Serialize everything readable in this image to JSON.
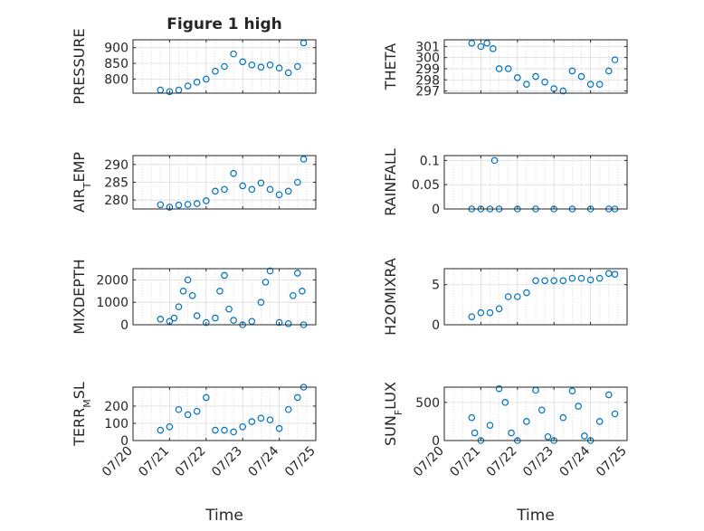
{
  "chart_data": [
    {
      "type": "scatter",
      "title": "Figure 1 high",
      "ylabel": "PRESSURE",
      "ylim": [
        755,
        925
      ],
      "yticks": [
        800,
        850,
        900
      ],
      "xlim": [
        "07/20",
        "07/25"
      ],
      "x": [
        "07/20 18:00",
        "07/21 00:00",
        "07/21 06:00",
        "07/21 12:00",
        "07/21 18:00",
        "07/22 00:00",
        "07/22 06:00",
        "07/22 12:00",
        "07/22 18:00",
        "07/23 00:00",
        "07/23 06:00",
        "07/23 12:00",
        "07/23 18:00",
        "07/24 00:00",
        "07/24 06:00",
        "07/24 12:00",
        "07/24 16:00"
      ],
      "y": [
        765,
        760,
        765,
        778,
        790,
        800,
        825,
        840,
        880,
        855,
        845,
        838,
        845,
        835,
        820,
        840,
        915
      ],
      "color": "#0072bd"
    },
    {
      "type": "scatter",
      "ylabel": "THETA",
      "ylim": [
        296.8,
        301.6
      ],
      "yticks": [
        297,
        298,
        299,
        300,
        301
      ],
      "xlim": [
        "07/20",
        "07/25"
      ],
      "x": [
        "07/20 18:00",
        "07/21 00:00",
        "07/21 04:00",
        "07/21 08:00",
        "07/21 12:00",
        "07/21 18:00",
        "07/22 00:00",
        "07/22 06:00",
        "07/22 12:00",
        "07/22 18:00",
        "07/23 00:00",
        "07/23 06:00",
        "07/23 12:00",
        "07/23 18:00",
        "07/24 00:00",
        "07/24 06:00",
        "07/24 12:00",
        "07/24 16:00"
      ],
      "y": [
        301.3,
        301.0,
        301.3,
        300.8,
        299.0,
        299.0,
        298.2,
        297.6,
        298.3,
        297.8,
        297.2,
        297.0,
        298.8,
        298.3,
        297.6,
        297.6,
        298.8,
        299.8
      ],
      "color": "#0072bd"
    },
    {
      "type": "scatter",
      "ylabel": "AIR_TEMP",
      "ylim": [
        277.5,
        292.5
      ],
      "yticks": [
        280,
        285,
        290
      ],
      "xlim": [
        "07/20",
        "07/25"
      ],
      "x": [
        "07/20 18:00",
        "07/21 00:00",
        "07/21 06:00",
        "07/21 12:00",
        "07/21 18:00",
        "07/22 00:00",
        "07/22 06:00",
        "07/22 12:00",
        "07/22 18:00",
        "07/23 00:00",
        "07/23 06:00",
        "07/23 12:00",
        "07/23 18:00",
        "07/24 00:00",
        "07/24 06:00",
        "07/24 12:00",
        "07/24 16:00"
      ],
      "y": [
        278.7,
        278.0,
        278.6,
        278.8,
        279.0,
        279.8,
        282.5,
        283.0,
        287.5,
        284.0,
        283.0,
        284.8,
        283.0,
        281.5,
        282.5,
        285.0,
        291.5
      ],
      "color": "#0072bd"
    },
    {
      "type": "scatter",
      "ylabel": "RAINFALL",
      "ylim": [
        0,
        0.11
      ],
      "yticks": [
        0,
        0.05,
        0.1
      ],
      "xlim": [
        "07/20",
        "07/25"
      ],
      "x": [
        "07/20 18:00",
        "07/21 00:00",
        "07/21 06:00",
        "07/21 09:00",
        "07/21 12:00",
        "07/22 00:00",
        "07/22 12:00",
        "07/23 00:00",
        "07/23 12:00",
        "07/24 00:00",
        "07/24 12:00",
        "07/24 16:00"
      ],
      "y": [
        0,
        0,
        0,
        0.1,
        0,
        0,
        0,
        0,
        0,
        0,
        0,
        0
      ],
      "color": "#0072bd"
    },
    {
      "type": "scatter",
      "ylabel": "MIXDEPTH",
      "ylim": [
        0,
        2500
      ],
      "yticks": [
        0,
        1000,
        2000
      ],
      "xlim": [
        "07/20",
        "07/25"
      ],
      "x": [
        "07/20 18:00",
        "07/21 00:00",
        "07/21 03:00",
        "07/21 06:00",
        "07/21 09:00",
        "07/21 12:00",
        "07/21 15:00",
        "07/21 18:00",
        "07/22 00:00",
        "07/22 06:00",
        "07/22 09:00",
        "07/22 12:00",
        "07/22 15:00",
        "07/22 18:00",
        "07/23 00:00",
        "07/23 06:00",
        "07/23 12:00",
        "07/23 15:00",
        "07/23 18:00",
        "07/24 00:00",
        "07/24 06:00",
        "07/24 09:00",
        "07/24 12:00",
        "07/24 15:00",
        "07/24 16:00"
      ],
      "y": [
        250,
        150,
        300,
        800,
        1500,
        2000,
        1300,
        400,
        100,
        300,
        1500,
        2200,
        700,
        200,
        0,
        150,
        1000,
        1900,
        2400,
        100,
        50,
        1300,
        2300,
        1500,
        0
      ],
      "color": "#0072bd"
    },
    {
      "type": "scatter",
      "ylabel": "H2OMIXRA",
      "ylim": [
        0,
        7
      ],
      "yticks": [
        0,
        5
      ],
      "xlim": [
        "07/20",
        "07/25"
      ],
      "x": [
        "07/20 18:00",
        "07/21 00:00",
        "07/21 06:00",
        "07/21 12:00",
        "07/21 18:00",
        "07/22 00:00",
        "07/22 06:00",
        "07/22 12:00",
        "07/22 18:00",
        "07/23 00:00",
        "07/23 06:00",
        "07/23 12:00",
        "07/23 18:00",
        "07/24 00:00",
        "07/24 06:00",
        "07/24 12:00",
        "07/24 16:00"
      ],
      "y": [
        1.0,
        1.5,
        1.5,
        2.0,
        3.5,
        3.5,
        4.0,
        5.5,
        5.5,
        5.5,
        5.5,
        5.8,
        5.8,
        5.6,
        5.8,
        6.4,
        6.3
      ],
      "color": "#0072bd"
    },
    {
      "type": "scatter",
      "ylabel": "TERR_MSL",
      "ylim": [
        0,
        310
      ],
      "yticks": [
        0,
        100,
        200
      ],
      "xlim": [
        "07/20",
        "07/25"
      ],
      "x": [
        "07/20 18:00",
        "07/21 00:00",
        "07/21 06:00",
        "07/21 12:00",
        "07/21 18:00",
        "07/22 00:00",
        "07/22 06:00",
        "07/22 12:00",
        "07/22 18:00",
        "07/23 00:00",
        "07/23 06:00",
        "07/23 12:00",
        "07/23 18:00",
        "07/24 00:00",
        "07/24 06:00",
        "07/24 12:00",
        "07/24 16:00"
      ],
      "y": [
        60,
        80,
        180,
        150,
        170,
        250,
        60,
        60,
        50,
        80,
        110,
        130,
        120,
        70,
        180,
        250,
        310
      ],
      "color": "#0072bd"
    },
    {
      "type": "scatter",
      "ylabel": "SUN_FLUX",
      "ylim": [
        0,
        700
      ],
      "yticks": [
        0,
        500
      ],
      "xlim": [
        "07/20",
        "07/25"
      ],
      "x": [
        "07/20 18:00",
        "07/20 20:00",
        "07/21 00:00",
        "07/21 06:00",
        "07/21 12:00",
        "07/21 16:00",
        "07/21 20:00",
        "07/22 00:00",
        "07/22 06:00",
        "07/22 12:00",
        "07/22 16:00",
        "07/22 20:00",
        "07/23 00:00",
        "07/23 06:00",
        "07/23 12:00",
        "07/23 16:00",
        "07/23 20:00",
        "07/24 00:00",
        "07/24 06:00",
        "07/24 12:00",
        "07/24 16:00"
      ],
      "y": [
        300,
        100,
        0,
        200,
        680,
        500,
        100,
        0,
        250,
        660,
        400,
        50,
        0,
        300,
        650,
        450,
        60,
        0,
        250,
        600,
        350
      ],
      "color": "#0072bd"
    }
  ],
  "axes": {
    "xticks": [
      "07/20",
      "07/21",
      "07/22",
      "07/23",
      "07/24",
      "07/25"
    ],
    "xlabel_left": "Time",
    "xlabel_right": "Time"
  }
}
